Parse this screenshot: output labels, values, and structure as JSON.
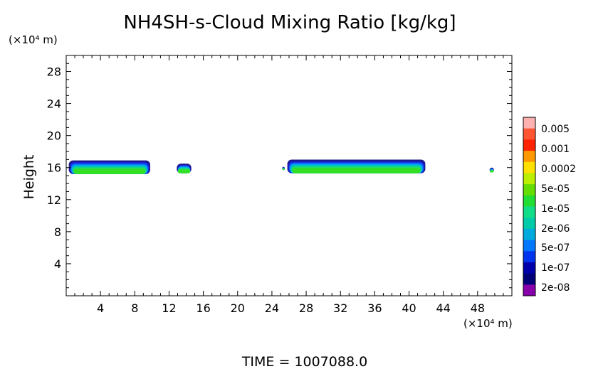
{
  "chart_data": {
    "type": "heatmap",
    "title": "NH4SH-s-Cloud Mixing Ratio [kg/kg]",
    "ylabel": "Height",
    "xlabel": "",
    "x_unit": "(×10⁴ m)",
    "y_unit": "(×10⁴ m)",
    "xlim": [
      0,
      52
    ],
    "ylim": [
      0,
      30
    ],
    "x_ticks": [
      4,
      8,
      12,
      16,
      20,
      24,
      28,
      32,
      36,
      40,
      44,
      48
    ],
    "y_ticks": [
      4,
      8,
      12,
      16,
      20,
      24,
      28
    ],
    "x_tick_labels": [
      "4",
      "8",
      "12",
      "16",
      "20",
      "24",
      "28",
      "32",
      "36",
      "40",
      "44",
      "48"
    ],
    "y_tick_labels": [
      "4",
      "8",
      "12",
      "16",
      "20",
      "24",
      "28"
    ],
    "colorbar": {
      "labels": [
        "0.005",
        "0.001",
        "0.0002",
        "5e-05",
        "1e-05",
        "2e-06",
        "5e-07",
        "1e-07",
        "2e-08"
      ],
      "colors_top_to_bottom": [
        "#ffb0b0",
        "#ff5533",
        "#ff2200",
        "#ff9900",
        "#ffe000",
        "#bbee00",
        "#66dd00",
        "#22dd33",
        "#11dd88",
        "#00ccaa",
        "#00aadd",
        "#0077ff",
        "#0033ee",
        "#0000aa",
        "#000077",
        "#8800aa"
      ]
    },
    "clouds": [
      {
        "x_start": 0.3,
        "x_end": 9.8,
        "z_bottom": 15.2,
        "z_top": 16.9
      },
      {
        "x_start": 12.9,
        "x_end": 14.6,
        "z_bottom": 15.3,
        "z_top": 16.5
      },
      {
        "x_start": 25.2,
        "x_end": 25.5,
        "z_bottom": 15.7,
        "z_top": 16.1
      },
      {
        "x_start": 25.8,
        "x_end": 41.9,
        "z_bottom": 15.3,
        "z_top": 17.0
      },
      {
        "x_start": 49.4,
        "x_end": 49.9,
        "z_bottom": 15.4,
        "z_top": 16.0
      }
    ],
    "annotation": "TIME  =  1007088.0"
  }
}
